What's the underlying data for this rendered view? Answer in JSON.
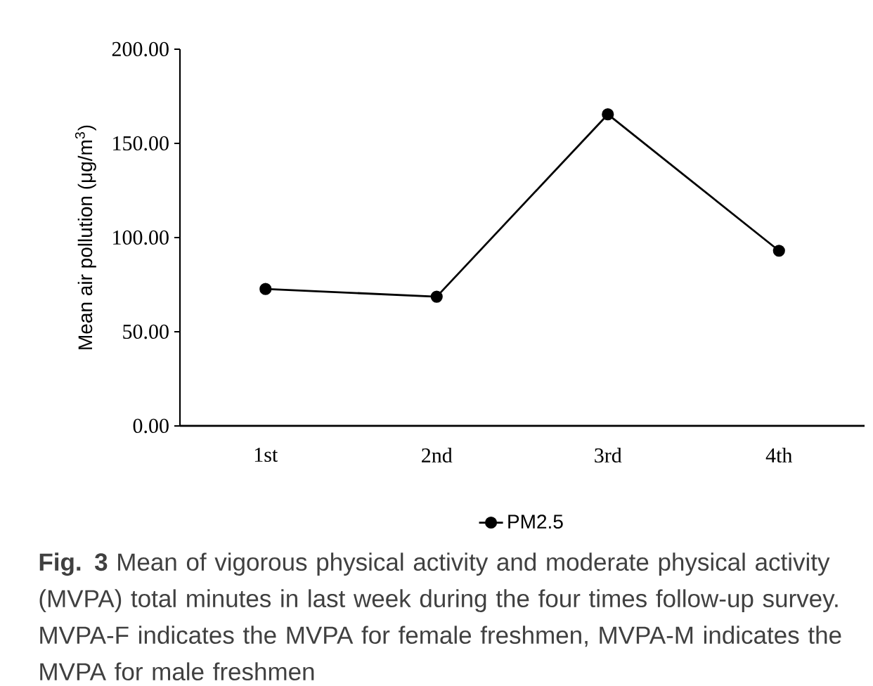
{
  "chart_data": {
    "type": "line",
    "ylabel": "Mean air pollution (μg/m$^{3}$)",
    "categories": [
      "1st",
      "2nd",
      "3rd",
      "4th"
    ],
    "series": [
      {
        "name": "PM2.5",
        "color": "#000000",
        "values": [
          72.7,
          68.6,
          165.4,
          93.0
        ]
      }
    ],
    "ylim": [
      0,
      200
    ],
    "yticks": [
      {
        "value": 0,
        "label": "0.00"
      },
      {
        "value": 50,
        "label": "50.00"
      },
      {
        "value": 100,
        "label": "100.00"
      },
      {
        "value": 150,
        "label": "150.00"
      },
      {
        "value": 200,
        "label": "200.00"
      }
    ],
    "legend": "bottom",
    "marker": "circle",
    "line_style": "solid",
    "grid": false,
    "annotations": [
      "**Fig. 3** Mean of vigorous physical activity and moderate physical activity (MVPA) total minutes in last week during the four times follow-up survey. MVPA-F indicates the MVPA for female freshmen, MVPA-M indicates the MVPA for male freshmen"
    ]
  }
}
